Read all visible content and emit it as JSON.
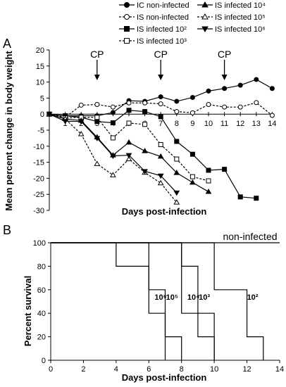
{
  "panel_a": {
    "label": "A",
    "annotation_text": "CP",
    "legend": [
      {
        "label": "IC non-infected",
        "line": "solid",
        "marker": "circle",
        "fill": "filled"
      },
      {
        "label": "IS non-infected",
        "line": "dashed",
        "marker": "circle",
        "fill": "open"
      },
      {
        "label": "IS infected 10²",
        "line": "solid",
        "marker": "square",
        "fill": "filled"
      },
      {
        "label": "IS infected 10³",
        "line": "dashed",
        "marker": "square",
        "fill": "open"
      },
      {
        "label": "IS infected 10⁴",
        "line": "solid",
        "marker": "triangle-up",
        "fill": "filled"
      },
      {
        "label": "IS infected 10⁵",
        "line": "dashed",
        "marker": "triangle-up",
        "fill": "open"
      },
      {
        "label": "IS infected 10⁶",
        "line": "solid",
        "marker": "triangle-down",
        "fill": "filled"
      }
    ]
  },
  "panel_b": {
    "label": "B",
    "top_label": "non-infected",
    "step_labels": [
      "10⁶",
      "10⁵",
      "10⁴",
      "10³",
      "10²"
    ]
  },
  "chart_data": [
    {
      "type": "line",
      "xlabel": "Days post-infection",
      "ylabel": "Mean percent change in body weight",
      "ylim": [
        -30,
        20
      ],
      "yticks": [
        20,
        15,
        10,
        5,
        0,
        -5,
        -10,
        -15,
        -20,
        -25,
        -30
      ],
      "xticks": [
        1,
        2,
        3,
        4,
        5,
        6,
        7,
        8,
        9,
        10,
        11,
        12,
        13,
        14
      ],
      "annotations": [
        {
          "text": "CP",
          "x": 3
        },
        {
          "text": "CP",
          "x": 7
        },
        {
          "text": "CP",
          "x": 11
        }
      ],
      "series": [
        {
          "name": "IC non-infected",
          "x": [
            0,
            1,
            2,
            3,
            4,
            5,
            6,
            7,
            8,
            9,
            10,
            11,
            12,
            13,
            14
          ],
          "y": [
            0,
            -0.5,
            -0.5,
            -0.5,
            0.5,
            4.2,
            4,
            5.4,
            4,
            5.2,
            7.2,
            8,
            9,
            10.8,
            8
          ]
        },
        {
          "name": "IS non-infected",
          "x": [
            0,
            1,
            2,
            3,
            4,
            5,
            6,
            7,
            8,
            9,
            10,
            11,
            12,
            13,
            14
          ],
          "y": [
            0,
            -1,
            2.8,
            3,
            2.2,
            3.5,
            3.5,
            3.2,
            0.8,
            0.4,
            3,
            2.2,
            2.2,
            3.6,
            -0.4
          ]
        },
        {
          "name": "IS infected 10²",
          "x": [
            0,
            1,
            2,
            3,
            4,
            5,
            6,
            7,
            8,
            9,
            10,
            11,
            12,
            13
          ],
          "y": [
            0,
            -0.5,
            -1,
            -2.3,
            -2.7,
            1.2,
            0.8,
            -0.8,
            -8.5,
            -12.5,
            -17.5,
            -17.2,
            -25.8,
            -26.2
          ]
        },
        {
          "name": "IS infected 10³",
          "x": [
            0,
            1,
            2,
            3,
            4,
            5,
            6,
            7,
            8,
            9,
            10
          ],
          "y": [
            0,
            -1.2,
            -1,
            -1,
            -7.4,
            -2.8,
            -3.2,
            -9.5,
            -14,
            -19.5,
            -20.8
          ]
        },
        {
          "name": "IS infected 10⁴",
          "x": [
            0,
            1,
            2,
            3,
            4,
            5,
            6,
            7,
            8,
            9,
            10
          ],
          "y": [
            0,
            -1.5,
            -2,
            -7.2,
            -12.8,
            -8.8,
            -11.5,
            -13.2,
            -18.3,
            -21.3,
            -24.2
          ]
        },
        {
          "name": "IS infected 10⁵",
          "x": [
            0,
            1,
            2,
            3,
            4,
            5,
            6,
            7,
            8
          ],
          "y": [
            0,
            -1.5,
            -6.2,
            -15.5,
            -19,
            -14,
            -18.2,
            -21.5,
            -27.5
          ]
        },
        {
          "name": "IS infected 10⁶",
          "x": [
            0,
            1,
            2,
            3,
            4,
            5,
            6,
            7,
            8
          ],
          "y": [
            0,
            -2.2,
            -2.3,
            -7.5,
            -13,
            -12.8,
            -17.8,
            -19.2,
            -24.5
          ]
        }
      ]
    },
    {
      "type": "line",
      "xlabel": "Days post-infection",
      "ylabel": "Percent survival",
      "ylim": [
        0,
        100
      ],
      "xlim": [
        0,
        14
      ],
      "yticks": [
        0,
        20,
        40,
        60,
        80,
        100
      ],
      "xticks": [
        0,
        2,
        4,
        6,
        8,
        10,
        12,
        14
      ],
      "series": [
        {
          "name": "non-infected",
          "x": [
            0,
            14
          ],
          "y": [
            100,
            100
          ]
        },
        {
          "name": "10⁶",
          "x": [
            0,
            4,
            4,
            6,
            6,
            7,
            7
          ],
          "y": [
            100,
            100,
            80,
            80,
            40,
            40,
            0
          ]
        },
        {
          "name": "10⁵",
          "x": [
            0,
            6,
            6,
            7,
            7,
            8,
            8
          ],
          "y": [
            100,
            100,
            60,
            60,
            20,
            20,
            0
          ]
        },
        {
          "name": "10⁴",
          "x": [
            0,
            8,
            8,
            9,
            9,
            10,
            10
          ],
          "y": [
            100,
            100,
            40,
            40,
            20,
            20,
            0
          ]
        },
        {
          "name": "10³",
          "x": [
            0,
            8,
            8,
            9,
            9,
            10,
            10
          ],
          "y": [
            100,
            100,
            80,
            80,
            40,
            40,
            0
          ]
        },
        {
          "name": "10²",
          "x": [
            0,
            10,
            10,
            12,
            12,
            13,
            13
          ],
          "y": [
            100,
            100,
            60,
            60,
            20,
            20,
            0
          ]
        }
      ]
    }
  ]
}
